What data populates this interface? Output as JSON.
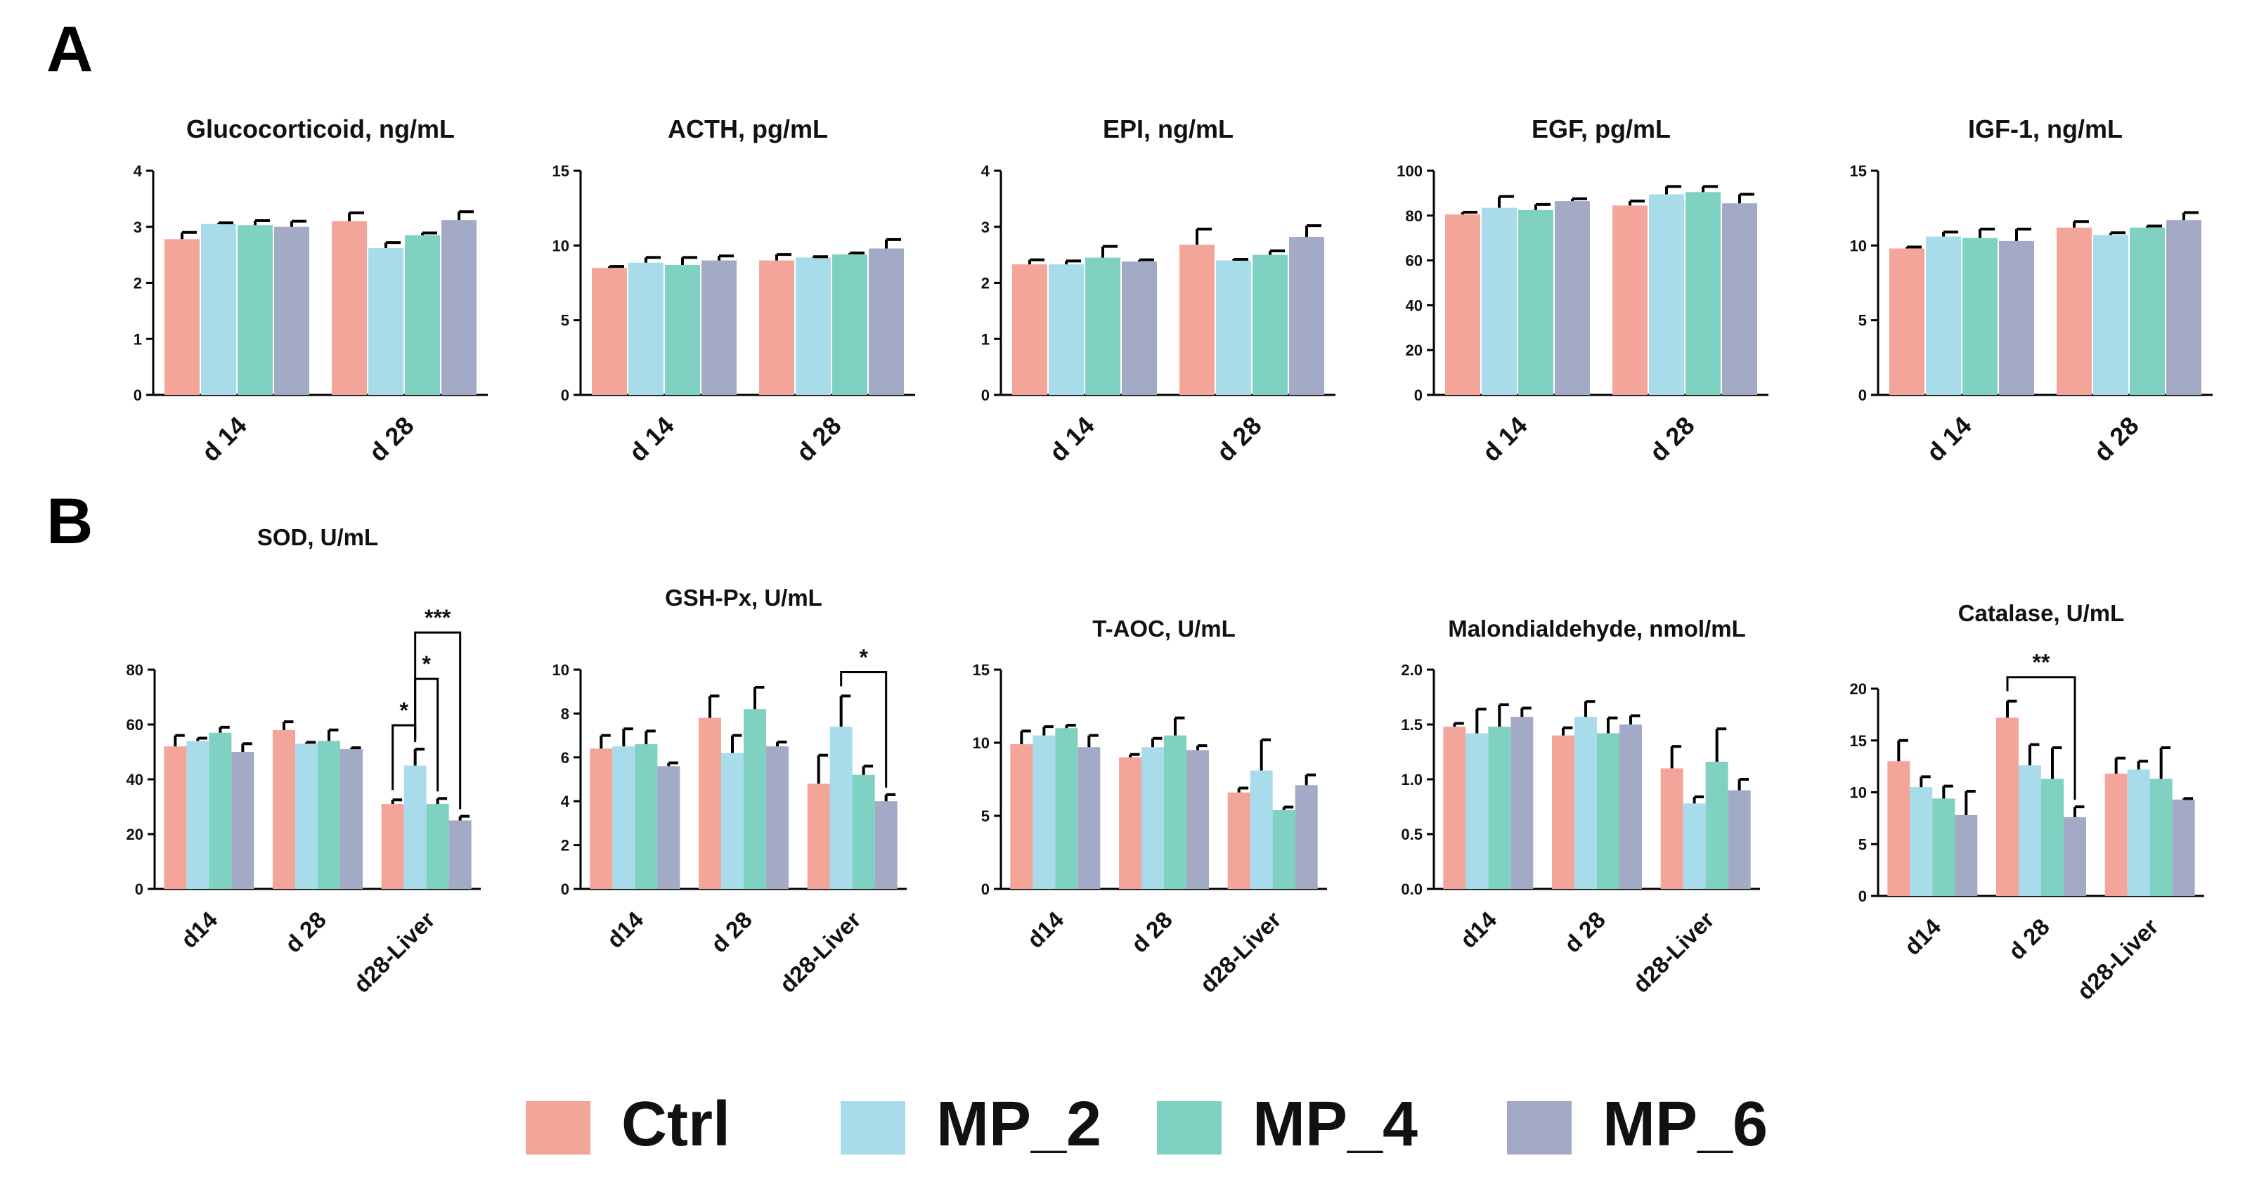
{
  "panels": {
    "a": "A",
    "b": "B"
  },
  "legend": [
    {
      "label": "Ctrl",
      "color": "#F4A59A"
    },
    {
      "label": "MP_2",
      "color": "#A8DCEB"
    },
    {
      "label": "MP_4",
      "color": "#7FD1C2"
    },
    {
      "label": "MP_6",
      "color": "#A3AAC6"
    }
  ],
  "chart_data": [
    {
      "type": "bar",
      "panel": "A",
      "title": "Glucocorticoid, ng/mL",
      "categories": [
        "d 14",
        "d 28"
      ],
      "ylim": [
        0,
        4
      ],
      "yticks": [
        0,
        1,
        2,
        3,
        4
      ],
      "grid": false,
      "series": [
        {
          "name": "Ctrl",
          "values": [
            2.78,
            3.1
          ],
          "errors": [
            0.12,
            0.15
          ]
        },
        {
          "name": "MP_2",
          "values": [
            3.05,
            2.62
          ],
          "errors": [
            0.02,
            0.1
          ]
        },
        {
          "name": "MP_4",
          "values": [
            3.03,
            2.85
          ],
          "errors": [
            0.08,
            0.04
          ]
        },
        {
          "name": "MP_6",
          "values": [
            3.0,
            3.12
          ],
          "errors": [
            0.1,
            0.15
          ]
        }
      ],
      "sig": []
    },
    {
      "type": "bar",
      "panel": "A",
      "title": "ACTH, pg/mL",
      "categories": [
        "d 14",
        "d 28"
      ],
      "ylim": [
        0,
        15
      ],
      "yticks": [
        0,
        5,
        10,
        15
      ],
      "grid": false,
      "series": [
        {
          "name": "Ctrl",
          "values": [
            8.5,
            9.0
          ],
          "errors": [
            0.1,
            0.4
          ]
        },
        {
          "name": "MP_2",
          "values": [
            8.85,
            9.2
          ],
          "errors": [
            0.35,
            0.05
          ]
        },
        {
          "name": "MP_4",
          "values": [
            8.7,
            9.4
          ],
          "errors": [
            0.5,
            0.1
          ]
        },
        {
          "name": "MP_6",
          "values": [
            9.0,
            9.8
          ],
          "errors": [
            0.3,
            0.6
          ]
        }
      ],
      "sig": []
    },
    {
      "type": "bar",
      "panel": "A",
      "title": "EPI, ng/mL",
      "categories": [
        "d 14",
        "d 28"
      ],
      "ylim": [
        0,
        4
      ],
      "yticks": [
        0,
        1,
        2,
        3,
        4
      ],
      "grid": false,
      "series": [
        {
          "name": "Ctrl",
          "values": [
            2.33,
            2.68
          ],
          "errors": [
            0.08,
            0.28
          ]
        },
        {
          "name": "MP_2",
          "values": [
            2.33,
            2.4
          ],
          "errors": [
            0.06,
            0.02
          ]
        },
        {
          "name": "MP_4",
          "values": [
            2.45,
            2.5
          ],
          "errors": [
            0.2,
            0.07
          ]
        },
        {
          "name": "MP_6",
          "values": [
            2.38,
            2.82
          ],
          "errors": [
            0.03,
            0.2
          ]
        }
      ],
      "sig": []
    },
    {
      "type": "bar",
      "panel": "A",
      "title": "EGF, pg/mL",
      "categories": [
        "d 14",
        "d 28"
      ],
      "ylim": [
        0,
        100
      ],
      "yticks": [
        0,
        20,
        40,
        60,
        80,
        100
      ],
      "grid": false,
      "series": [
        {
          "name": "Ctrl",
          "values": [
            80.5,
            84.5
          ],
          "errors": [
            1.0,
            2.0
          ]
        },
        {
          "name": "MP_2",
          "values": [
            83.5,
            89.5
          ],
          "errors": [
            5.0,
            3.5
          ]
        },
        {
          "name": "MP_4",
          "values": [
            82.5,
            90.5
          ],
          "errors": [
            2.5,
            2.5
          ]
        },
        {
          "name": "MP_6",
          "values": [
            86.5,
            85.5
          ],
          "errors": [
            1.0,
            4.0
          ]
        }
      ],
      "sig": []
    },
    {
      "type": "bar",
      "panel": "A",
      "title": "IGF-1, ng/mL",
      "categories": [
        "d 14",
        "d 28"
      ],
      "ylim": [
        0,
        15
      ],
      "yticks": [
        0,
        5,
        10,
        15
      ],
      "grid": false,
      "series": [
        {
          "name": "Ctrl",
          "values": [
            9.8,
            11.2
          ],
          "errors": [
            0.1,
            0.4
          ]
        },
        {
          "name": "MP_2",
          "values": [
            10.6,
            10.7
          ],
          "errors": [
            0.3,
            0.15
          ]
        },
        {
          "name": "MP_4",
          "values": [
            10.5,
            11.2
          ],
          "errors": [
            0.6,
            0.1
          ]
        },
        {
          "name": "MP_6",
          "values": [
            10.3,
            11.7
          ],
          "errors": [
            0.8,
            0.5
          ]
        }
      ],
      "sig": []
    },
    {
      "type": "bar",
      "panel": "B",
      "title": "SOD, U/mL",
      "categories": [
        "d14",
        "d 28",
        "d28-Liver"
      ],
      "ylim": [
        0,
        80
      ],
      "yticks": [
        0,
        20,
        40,
        60,
        80
      ],
      "grid": false,
      "series": [
        {
          "name": "Ctrl",
          "values": [
            52,
            58,
            31
          ],
          "errors": [
            4,
            3,
            1.5
          ]
        },
        {
          "name": "MP_2",
          "values": [
            54,
            53,
            45
          ],
          "errors": [
            1,
            0.5,
            6
          ]
        },
        {
          "name": "MP_4",
          "values": [
            57,
            54,
            31
          ],
          "errors": [
            2,
            4,
            2
          ]
        },
        {
          "name": "MP_6",
          "values": [
            50,
            51,
            25
          ],
          "errors": [
            3,
            0.5,
            1.5
          ]
        }
      ],
      "sig": [
        {
          "group": 2,
          "from": 0,
          "to": 1,
          "label": "*",
          "level": 1
        },
        {
          "group": 2,
          "from": 1,
          "to": 2,
          "label": "*",
          "level": 2
        },
        {
          "group": 2,
          "from": 1,
          "to": 3,
          "label": "***",
          "level": 3
        }
      ]
    },
    {
      "type": "bar",
      "panel": "B",
      "title": "GSH-Px, U/mL",
      "categories": [
        "d14",
        "d 28",
        "d28-Liver"
      ],
      "ylim": [
        0,
        10
      ],
      "yticks": [
        0,
        2,
        4,
        6,
        8,
        10
      ],
      "grid": false,
      "series": [
        {
          "name": "Ctrl",
          "values": [
            6.4,
            7.8,
            4.8
          ],
          "errors": [
            0.6,
            1.0,
            1.3
          ]
        },
        {
          "name": "MP_2",
          "values": [
            6.5,
            6.2,
            7.4
          ],
          "errors": [
            0.8,
            0.8,
            1.4
          ]
        },
        {
          "name": "MP_4",
          "values": [
            6.6,
            8.2,
            5.2
          ],
          "errors": [
            0.6,
            1.0,
            0.4
          ]
        },
        {
          "name": "MP_6",
          "values": [
            5.6,
            6.5,
            4.0
          ],
          "errors": [
            0.15,
            0.2,
            0.3
          ]
        }
      ],
      "sig": [
        {
          "group": 2,
          "from": 1,
          "to": 3,
          "label": "*",
          "level": 1
        }
      ]
    },
    {
      "type": "bar",
      "panel": "B",
      "title": "T-AOC, U/mL",
      "categories": [
        "d14",
        "d 28",
        "d28-Liver"
      ],
      "ylim": [
        0,
        15
      ],
      "yticks": [
        0,
        5,
        10,
        15
      ],
      "grid": false,
      "series": [
        {
          "name": "Ctrl",
          "values": [
            9.9,
            9.0,
            6.6
          ],
          "errors": [
            0.9,
            0.2,
            0.3
          ]
        },
        {
          "name": "MP_2",
          "values": [
            10.5,
            9.7,
            8.1
          ],
          "errors": [
            0.6,
            0.6,
            2.1
          ]
        },
        {
          "name": "MP_4",
          "values": [
            11.0,
            10.5,
            5.4
          ],
          "errors": [
            0.2,
            1.2,
            0.2
          ]
        },
        {
          "name": "MP_6",
          "values": [
            9.7,
            9.5,
            7.1
          ],
          "errors": [
            0.8,
            0.3,
            0.7
          ]
        }
      ],
      "sig": []
    },
    {
      "type": "bar",
      "panel": "B",
      "title": "Malondialdehyde, nmol/mL",
      "categories": [
        "d14",
        "d 28",
        "d28-Liver"
      ],
      "ylim": [
        0,
        2.0
      ],
      "yticks": [
        0.0,
        0.5,
        1.0,
        1.5,
        2.0
      ],
      "tickfmt": 1,
      "grid": false,
      "series": [
        {
          "name": "Ctrl",
          "values": [
            1.48,
            1.4,
            1.1
          ],
          "errors": [
            0.03,
            0.07,
            0.2
          ]
        },
        {
          "name": "MP_2",
          "values": [
            1.42,
            1.57,
            0.78
          ],
          "errors": [
            0.22,
            0.14,
            0.06
          ]
        },
        {
          "name": "MP_4",
          "values": [
            1.48,
            1.42,
            1.16
          ],
          "errors": [
            0.2,
            0.14,
            0.3
          ]
        },
        {
          "name": "MP_6",
          "values": [
            1.57,
            1.5,
            0.9
          ],
          "errors": [
            0.08,
            0.08,
            0.1
          ]
        }
      ],
      "sig": []
    },
    {
      "type": "bar",
      "panel": "B",
      "title": "Catalase, U/mL",
      "categories": [
        "d14",
        "d 28",
        "d28-Liver"
      ],
      "ylim": [
        0,
        20
      ],
      "yticks": [
        0,
        5,
        10,
        15,
        20
      ],
      "grid": false,
      "series": [
        {
          "name": "Ctrl",
          "values": [
            13.0,
            17.2,
            11.8
          ],
          "errors": [
            2.0,
            1.6,
            1.5
          ]
        },
        {
          "name": "MP_2",
          "values": [
            10.5,
            12.6,
            12.2
          ],
          "errors": [
            1.0,
            2.0,
            0.8
          ]
        },
        {
          "name": "MP_4",
          "values": [
            9.4,
            11.3,
            11.3
          ],
          "errors": [
            1.2,
            3.0,
            3.0
          ]
        },
        {
          "name": "MP_6",
          "values": [
            7.8,
            7.6,
            9.3
          ],
          "errors": [
            2.3,
            1.0,
            0.1
          ]
        }
      ],
      "sig": [
        {
          "group": 1,
          "from": 0,
          "to": 3,
          "label": "**",
          "level": 1
        }
      ]
    }
  ]
}
